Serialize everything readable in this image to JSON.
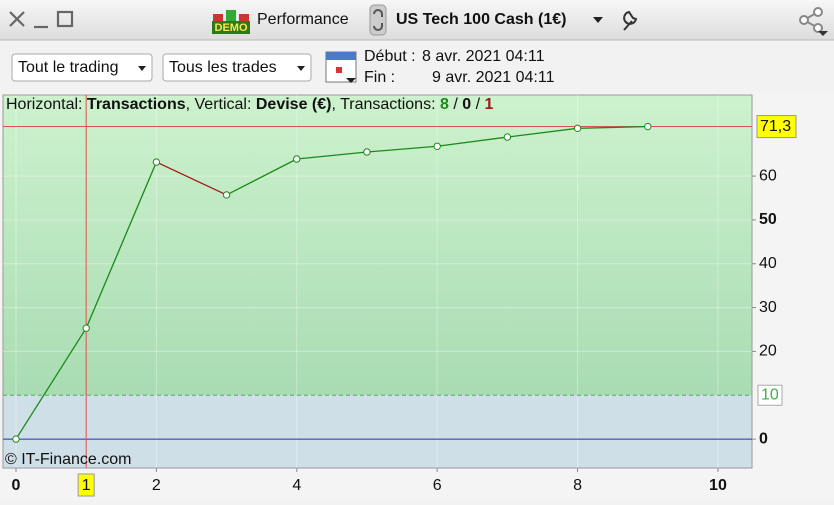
{
  "toolbar": {
    "demo_badge": "DEMO",
    "tab": "Performance",
    "instrument": "US Tech 100 Cash (1€)"
  },
  "filters": {
    "scope": "Tout le trading",
    "trades": "Tous les trades"
  },
  "period": {
    "start_label": "Début :",
    "start": "8 avr. 2021 04:11",
    "end_label": "Fin :",
    "end": "9 avr. 2021 04:11"
  },
  "header_parts": [
    {
      "text": "Horizontal: "
    },
    {
      "text": "Transactions",
      "style": "bold"
    },
    {
      "text": ", Vertical: "
    },
    {
      "text": "Devise (€)",
      "style": "bold"
    },
    {
      "text": ", Transactions: "
    },
    {
      "text": "8",
      "style": "green"
    },
    {
      "text": " / "
    },
    {
      "text": "0",
      "style": "bold"
    },
    {
      "text": " / "
    },
    {
      "text": "1",
      "style": "red"
    }
  ],
  "copyright": "© IT-Finance.com",
  "chart_data": {
    "type": "line",
    "x": [
      0,
      1,
      2,
      3,
      4,
      5,
      6,
      7,
      8,
      9
    ],
    "series": [
      {
        "color": "#1a8a1a",
        "loss_color": "#a01818",
        "values": [
          0,
          25.3,
          63.2,
          55.7,
          63.9,
          65.5,
          66.8,
          68.9,
          70.9,
          71.3
        ]
      }
    ],
    "xlim": [
      -0.185,
      10.485
    ],
    "xticks": [
      0,
      2,
      4,
      6,
      8,
      10
    ],
    "ylim": [
      -6.6,
      78.5
    ],
    "yticks": [
      0,
      20,
      30,
      40,
      50,
      60
    ],
    "grid": true,
    "cursor_x": 1,
    "reference_line": {
      "value": 10
    },
    "current_line": {
      "value": 71.3,
      "label": "71,3"
    }
  }
}
